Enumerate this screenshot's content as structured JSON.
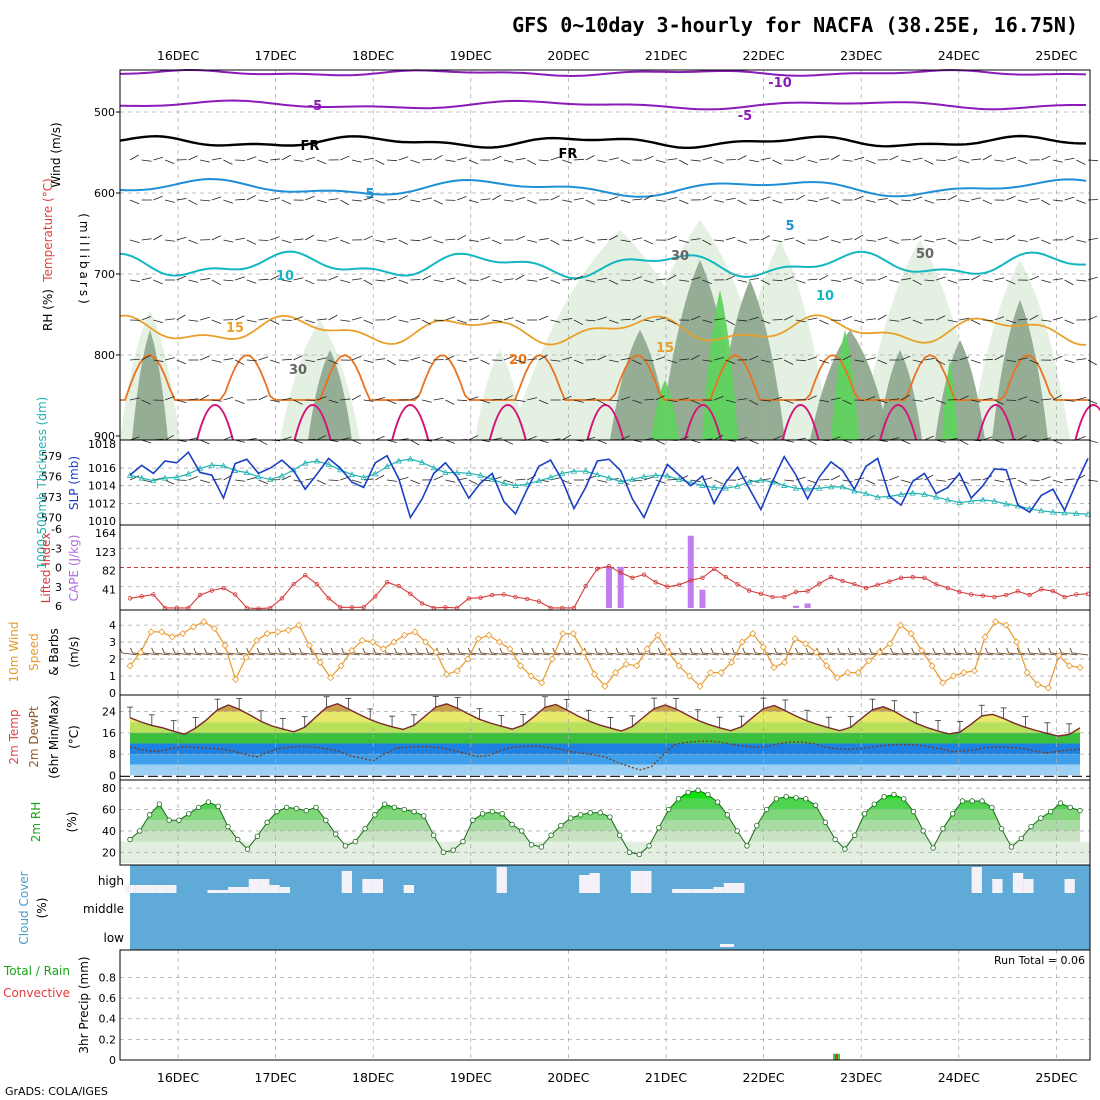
{
  "header": {
    "title": "GFS 0~10day 3-hourly for NACFA (38.25E, 16.75N)",
    "credit": "GrADS: COLA/IGES",
    "dates": [
      "16DEC",
      "17DEC",
      "18DEC",
      "19DEC",
      "20DEC",
      "21DEC",
      "22DEC",
      "23DEC",
      "24DEC",
      "25DEC"
    ]
  },
  "colors": {
    "rh_light": "#e3efe0",
    "rh_mid": "#b9cfb8",
    "rh_dark": "#8fa98f",
    "rh_green": "#5fd35f",
    "purple": "#8a1bb8",
    "black": "#000000",
    "blue5": "#1e8fd8",
    "cyan10": "#12b7c2",
    "orange15": "#e8a02a",
    "orange20": "#e8731e",
    "magenta": "#d4147a",
    "slp": "#1a3fc4",
    "thick": "#22b3b3",
    "cape": "#c07ef0",
    "li": "#d43b3b",
    "wind": "#e8992a",
    "barb": "#6b4a2a",
    "cloud": "#5faad6",
    "cloud_white": "#f4f2f8",
    "precip_total": "#3ccf3c",
    "precip_conv": "#e33b3b"
  },
  "panels": {
    "upper": {
      "ylabels": [
        "Wind (m/s)",
        "Temperature (°C)",
        "RH (%)"
      ],
      "pressure_axis_label": "(millibars)",
      "pressure_ticks": [
        "500",
        "600",
        "700",
        "800",
        "900"
      ],
      "contour_labels": [
        "-10",
        "-5",
        "-5",
        "FR",
        "FR",
        "5",
        "5",
        "10",
        "10",
        "15",
        "15",
        "20",
        "30",
        "30",
        "50"
      ]
    },
    "slp": {
      "ylabel_left": "1000-500mb Thickness (dm)",
      "ylabel_right": "SLP (mb)",
      "thickness_ticks": [
        "579",
        "576",
        "573",
        "570"
      ],
      "slp_ticks": [
        "1016",
        "1014",
        "1012",
        "1010"
      ],
      "top_tick": "1018"
    },
    "cape": {
      "ylabel_left": "Lifted Index",
      "ylabel_right": "CAPE (J/kg)",
      "li_ticks": [
        "-6",
        "-3",
        "0",
        "3",
        "6"
      ],
      "cape_ticks": [
        "164",
        "123",
        "82",
        "41"
      ]
    },
    "wind": {
      "ylabel": "10m Wind Speed & Barbs (m/s)",
      "ylabel_line1": "10m Wind",
      "ylabel_line2": "Speed",
      "ylabel_line3": "& Barbs",
      "ylabel_line4": "(m/s)",
      "ticks": [
        "4",
        "3",
        "2",
        "1",
        "0"
      ]
    },
    "temp": {
      "ylabel_line1": "2m Temp",
      "ylabel_line2": "2m DewPt",
      "ylabel_line3": "(6hr Min/Max)",
      "ylabel_line4": "(°C)",
      "ticks": [
        "24",
        "16",
        "8",
        "0"
      ]
    },
    "rh2m": {
      "ylabel_line1": "2m RH",
      "ylabel_line2": "(%)",
      "ticks": [
        "80",
        "60",
        "40",
        "20"
      ]
    },
    "cloud": {
      "ylabel_line1": "Cloud Cover",
      "ylabel_line2": "(%)",
      "levels": [
        "high",
        "middle",
        "low"
      ]
    },
    "precip": {
      "ylabel_total": "Total / Rain",
      "ylabel_conv": "Convective",
      "ylabel_unit": "3hr Precip (mm)",
      "ticks": [
        "0.8",
        "0.6",
        "0.4",
        "0.2",
        "0"
      ],
      "run_total": "Run Total = 0.06"
    }
  },
  "chart_data": [
    {
      "type": "line",
      "name": "SLP",
      "panel": "slp",
      "unit": "mb",
      "x_index_note": "3-hourly steps from 15DEC 12Z",
      "values": [
        1015.2,
        1016.3,
        1015.4,
        1016.8,
        1016.6,
        1017.8,
        1015.5,
        1015.2,
        1012.6,
        1016.5,
        1017.0,
        1015.4,
        1016.0,
        1016.9,
        1015.7,
        1013.6,
        1015.3,
        1017.1,
        1016.0,
        1014.4,
        1013.8,
        1016.6,
        1017.4,
        1014.8,
        1010.4,
        1012.5,
        1015.4,
        1016.6,
        1015.0,
        1012.6,
        1014.3,
        1015.4,
        1012.2,
        1010.8,
        1013.6,
        1016.2,
        1016.9,
        1014.6,
        1011.4,
        1013.8,
        1016.8,
        1017.0,
        1015.7,
        1012.5,
        1010.4,
        1013.5,
        1016.4,
        1015.2,
        1014.0,
        1015.1,
        1012.0,
        1014.4,
        1016.1,
        1013.7,
        1011.3,
        1014.5,
        1017.3,
        1015.2,
        1012.5,
        1015.0,
        1016.7,
        1015.7,
        1013.6,
        1016.2,
        1017.1,
        1012.8,
        1011.8,
        1014.5,
        1015.4,
        1013.1,
        1013.8,
        1015.4,
        1012.6,
        1014.0,
        1015.9,
        1015.8,
        1011.8,
        1011.0,
        1012.9,
        1013.6,
        1011.2,
        1014.3,
        1017.1
      ]
    },
    {
      "type": "line",
      "name": "Thickness",
      "panel": "slp",
      "unit": "dm",
      "values": [
        576.2,
        575.8,
        575.4,
        575.8,
        575.9,
        576.4,
        577.2,
        577.7,
        577.6,
        576.9,
        576.6,
        576.0,
        575.6,
        576.1,
        577.0,
        578.0,
        578.3,
        577.8,
        577.0,
        576.3,
        575.9,
        576.4,
        577.5,
        578.3,
        578.6,
        578.1,
        577.3,
        576.6,
        576.6,
        576.5,
        576.2,
        575.6,
        575.0,
        574.7,
        574.9,
        575.4,
        575.9,
        576.5,
        576.8,
        576.8,
        576.3,
        575.8,
        575.3,
        575.6,
        576.0,
        576.2,
        576.1,
        575.6,
        575.1,
        574.7,
        574.4,
        574.3,
        574.6,
        575.2,
        575.5,
        575.2,
        574.7,
        574.3,
        574.2,
        574.3,
        574.5,
        574.5,
        573.9,
        573.5,
        573.0,
        573.1,
        573.4,
        573.6,
        573.4,
        573.0,
        572.6,
        572.2,
        572.4,
        572.6,
        572.4,
        572.0,
        571.7,
        571.3,
        571.0,
        570.8,
        570.7,
        570.6,
        570.5
      ]
    },
    {
      "type": "line",
      "name": "Lifted Index",
      "panel": "cape",
      "unit": "°C",
      "values": [
        4.8,
        4.5,
        4.2,
        6.3,
        6.3,
        6.3,
        4.3,
        3.6,
        3.2,
        4.2,
        6.3,
        6.4,
        6.3,
        4.8,
        2.6,
        1.2,
        2.6,
        4.8,
        6.2,
        6.2,
        6.2,
        4.5,
        2.3,
        2.9,
        4.1,
        5.6,
        6.3,
        6.2,
        6.3,
        4.8,
        4.7,
        4.3,
        4.2,
        4.6,
        4.9,
        5.3,
        6.3,
        6.3,
        6.3,
        2.9,
        0.2,
        -0.2,
        0.8,
        1.6,
        1.1,
        2.3,
        3.0,
        2.7,
        2.0,
        1.6,
        0.2,
        1.5,
        2.6,
        3.6,
        4.1,
        4.6,
        4.6,
        3.8,
        3.7,
        2.5,
        1.5,
        2.1,
        2.6,
        3.2,
        2.7,
        2.2,
        1.6,
        1.5,
        1.6,
        2.6,
        3.2,
        3.8,
        4.2,
        4.4,
        4.6,
        4.3,
        3.7,
        4.3,
        3.4,
        3.7,
        4.6,
        4.2,
        4.1
      ]
    },
    {
      "type": "bar",
      "name": "CAPE",
      "panel": "cape",
      "unit": "J/kg",
      "bars": [
        [
          41,
          90
        ],
        [
          42,
          90
        ],
        [
          48,
          158
        ],
        [
          49,
          40
        ],
        [
          57,
          5
        ],
        [
          58,
          10
        ]
      ]
    },
    {
      "type": "line",
      "name": "10m Wind Speed",
      "panel": "wind",
      "unit": "m/s",
      "values": [
        1.6,
        2.4,
        3.6,
        3.6,
        3.3,
        3.5,
        3.9,
        4.2,
        3.8,
        2.8,
        0.8,
        2.1,
        3.1,
        3.5,
        3.6,
        3.7,
        4.0,
        2.8,
        1.8,
        0.9,
        1.6,
        2.5,
        3.1,
        3.0,
        2.6,
        3.0,
        3.4,
        3.6,
        3.0,
        2.4,
        1.1,
        1.3,
        2.0,
        3.2,
        3.4,
        3.0,
        2.6,
        1.6,
        1.0,
        0.6,
        2.0,
        3.5,
        3.5,
        2.4,
        1.1,
        0.4,
        1.2,
        1.7,
        1.6,
        2.6,
        3.4,
        2.4,
        1.6,
        1.0,
        0.4,
        1.2,
        1.2,
        1.8,
        3.0,
        3.5,
        2.7,
        1.5,
        1.8,
        3.2,
        2.9,
        2.4,
        1.6,
        0.9,
        1.2,
        1.2,
        1.9,
        2.4,
        2.9,
        4.0,
        3.5,
        2.5,
        1.6,
        0.6,
        1.0,
        1.2,
        1.3,
        3.3,
        4.2,
        4.0,
        3.0,
        1.2,
        0.5,
        0.3,
        2.2,
        1.6,
        1.5
      ]
    },
    {
      "type": "area",
      "name": "2m Temp",
      "panel": "temp",
      "unit": "°C",
      "values": [
        21.7,
        20.1,
        18.8,
        17.9,
        16.6,
        15.5,
        17.8,
        20.9,
        24.7,
        26.5,
        24.9,
        22.7,
        20.3,
        18.6,
        17.4,
        16.4,
        18.1,
        21.9,
        25.6,
        27.0,
        25.0,
        22.9,
        21.0,
        19.5,
        18.3,
        17.3,
        18.8,
        22.2,
        25.7,
        26.9,
        25.3,
        23.1,
        21.1,
        19.7,
        18.5,
        17.4,
        18.9,
        22.1,
        25.6,
        26.7,
        24.6,
        22.4,
        20.5,
        19.0,
        17.8,
        16.7,
        18.4,
        21.8,
        25.1,
        26.5,
        25.0,
        22.8,
        20.7,
        19.2,
        17.9,
        16.8,
        18.3,
        21.7,
        25.1,
        26.3,
        24.4,
        22.3,
        20.5,
        19.1,
        17.9,
        16.8,
        18.1,
        21.5,
        24.7,
        25.8,
        24.1,
        21.7,
        19.6,
        18.0,
        16.7,
        15.6,
        16.3,
        19.2,
        22.4,
        23.0,
        21.4,
        19.6,
        18.1,
        16.9,
        15.8,
        14.8,
        15.4,
        17.9
      ]
    },
    {
      "type": "line",
      "name": "2m DewPt",
      "panel": "temp",
      "unit": "°C",
      "values": [
        10.8,
        9.6,
        9.0,
        9.5,
        10.5,
        10.8,
        10.4,
        10.2,
        9.8,
        9.0,
        7.8,
        7.0,
        8.9,
        10.2,
        10.6,
        10.9,
        10.6,
        10.0,
        9.1,
        7.4,
        6.5,
        5.5,
        8.2,
        10.3,
        10.6,
        10.8,
        10.8,
        10.3,
        9.3,
        8.2,
        7.1,
        7.6,
        9.4,
        10.6,
        10.9,
        11.0,
        10.6,
        10.0,
        9.0,
        8.4,
        7.8,
        7.0,
        5.0,
        3.5,
        2.0,
        3.2,
        7.5,
        11.6,
        12.4,
        12.8,
        12.9,
        12.5,
        11.6,
        11.0,
        10.6,
        10.9,
        11.9,
        12.6,
        12.5,
        12.0,
        10.7,
        10.0,
        9.8,
        10.1,
        10.6,
        11.2,
        11.6,
        11.6,
        11.4,
        10.7,
        10.0,
        8.9,
        9.2,
        9.7,
        10.5,
        10.7,
        10.5,
        10.2,
        9.2,
        8.4,
        9.0,
        9.6,
        9.8
      ]
    },
    {
      "type": "area",
      "name": "2m RH",
      "panel": "rh2m",
      "unit": "%",
      "values": [
        32,
        40,
        55,
        65,
        50,
        50,
        56,
        62,
        67,
        63,
        44,
        32,
        23,
        35,
        48,
        58,
        62,
        61,
        59,
        62,
        50,
        37,
        26,
        30,
        42,
        55,
        65,
        62,
        60,
        58,
        54,
        36,
        20,
        22,
        30,
        50,
        56,
        58,
        56,
        46,
        40,
        27,
        25,
        36,
        45,
        52,
        55,
        57,
        57,
        53,
        36,
        20,
        18,
        26,
        43,
        60,
        70,
        76,
        78,
        74,
        67,
        55,
        40,
        26,
        45,
        60,
        70,
        72,
        71,
        70,
        64,
        48,
        32,
        23,
        36,
        56,
        65,
        72,
        74,
        70,
        58,
        40,
        24,
        42,
        56,
        68,
        68,
        68,
        62,
        42,
        25,
        33,
        44,
        52,
        58,
        66,
        62,
        59
      ]
    },
    {
      "type": "bar",
      "name": "High Cloud Cover",
      "panel": "cloud",
      "unit": "%",
      "values": [
        0,
        0,
        0,
        0,
        0,
        0,
        0,
        0,
        5,
        4,
        10,
        10,
        22,
        22,
        12,
        10,
        0,
        0,
        0,
        0,
        0,
        0,
        85,
        0,
        0,
        0,
        0,
        0,
        0,
        0,
        0,
        0,
        0,
        0,
        0,
        0,
        0,
        0,
        0,
        0,
        0,
        0,
        0,
        0,
        0,
        0,
        0,
        0,
        0,
        0,
        0,
        0,
        0,
        0,
        0,
        0,
        0,
        0,
        0,
        0,
        0,
        0,
        0,
        0,
        0,
        0,
        0,
        0,
        0,
        0,
        0,
        0,
        0,
        0,
        0,
        0,
        0,
        0,
        0,
        0,
        0,
        0,
        0,
        0,
        0,
        0,
        0,
        0,
        0,
        0
      ],
      "note": "approximate"
    },
    {
      "type": "bar",
      "name": "3hr Precip Total",
      "panel": "precip",
      "unit": "mm",
      "bars": [
        [
          62,
          0.06
        ]
      ]
    }
  ]
}
